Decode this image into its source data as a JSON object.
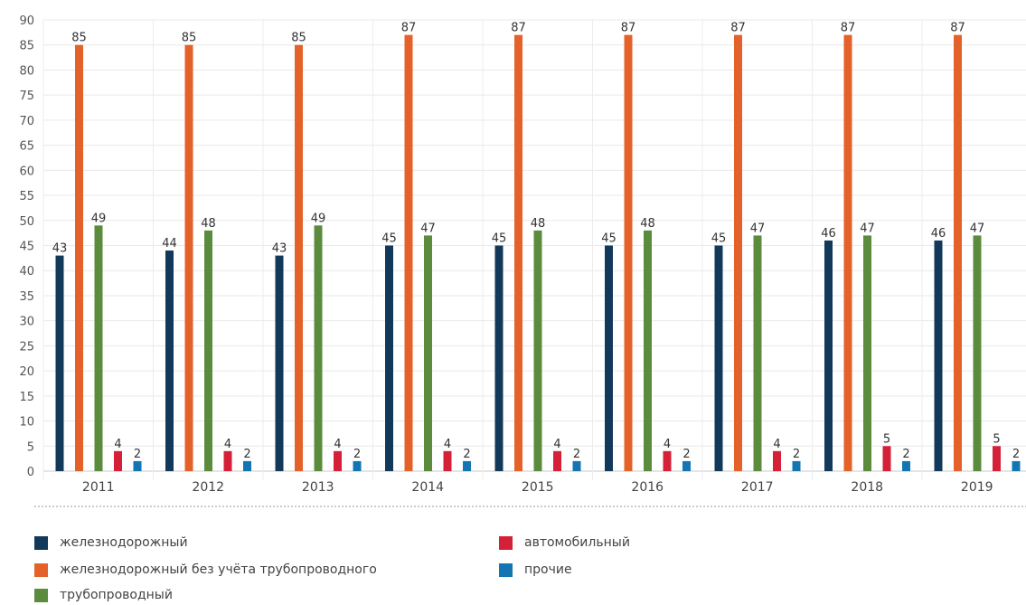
{
  "chart_data": {
    "type": "bar",
    "categories": [
      "2011",
      "2012",
      "2013",
      "2014",
      "2015",
      "2016",
      "2017",
      "2018",
      "2019"
    ],
    "series": [
      {
        "name": "железнодорожный",
        "color": "#12385a",
        "values": [
          43,
          44,
          43,
          45,
          45,
          45,
          45,
          46,
          46
        ]
      },
      {
        "name": "железнодорожный без учёта трубопроводного",
        "color": "#e4612a",
        "values": [
          85,
          85,
          85,
          87,
          87,
          87,
          87,
          87,
          87
        ]
      },
      {
        "name": "трубопроводный",
        "color": "#5b8c3e",
        "values": [
          49,
          48,
          49,
          47,
          48,
          48,
          47,
          47,
          47
        ]
      },
      {
        "name": "автомобильный",
        "color": "#d42137",
        "values": [
          4,
          4,
          4,
          4,
          4,
          4,
          4,
          5,
          5
        ]
      },
      {
        "name": "прочие",
        "color": "#1376b3",
        "values": [
          2,
          2,
          2,
          2,
          2,
          2,
          2,
          2,
          2
        ]
      }
    ],
    "ylim": [
      0,
      90
    ],
    "yticks": [
      0,
      5,
      10,
      15,
      20,
      25,
      30,
      35,
      40,
      45,
      50,
      55,
      60,
      65,
      70,
      75,
      80,
      85,
      90
    ],
    "grid": true,
    "legend_position": "bottom"
  }
}
